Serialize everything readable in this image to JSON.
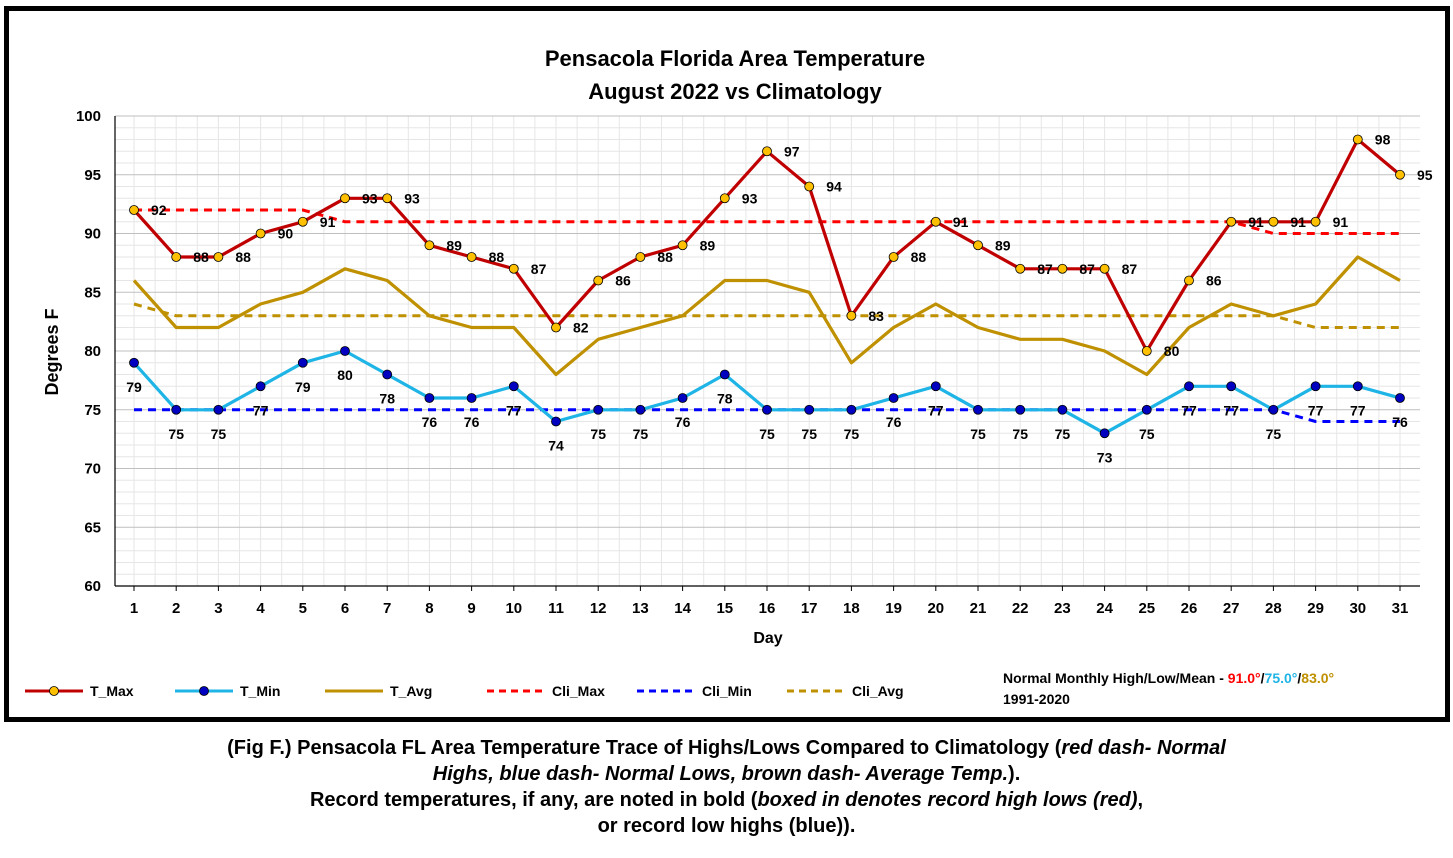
{
  "chart_data": {
    "type": "line",
    "title_line1": "Pensacola Florida  Area Temperature",
    "title_line2": "August 2022 vs Climatology",
    "xlabel": "Day",
    "ylabel": "Degrees F",
    "ylim": [
      60,
      100
    ],
    "yticks": [
      60,
      65,
      70,
      75,
      80,
      85,
      90,
      95,
      100
    ],
    "x": [
      1,
      2,
      3,
      4,
      5,
      6,
      7,
      8,
      9,
      10,
      11,
      12,
      13,
      14,
      15,
      16,
      17,
      18,
      19,
      20,
      21,
      22,
      23,
      24,
      25,
      26,
      27,
      28,
      29,
      30,
      31
    ],
    "grid": true,
    "series": [
      {
        "name": "T_Max",
        "color": "#c00000",
        "marker": "#ffc000",
        "style": "solid-marker",
        "values": [
          92,
          88,
          88,
          90,
          91,
          93,
          93,
          89,
          88,
          87,
          82,
          86,
          88,
          89,
          93,
          97,
          94,
          83,
          88,
          91,
          89,
          87,
          87,
          87,
          80,
          86,
          91,
          91,
          91,
          98,
          95
        ]
      },
      {
        "name": "T_Min",
        "color": "#1fb4e6",
        "marker": "#0000c0",
        "style": "solid-marker",
        "values": [
          79,
          75,
          75,
          77,
          79,
          80,
          78,
          76,
          76,
          77,
          74,
          75,
          75,
          76,
          78,
          75,
          75,
          75,
          76,
          77,
          75,
          75,
          75,
          73,
          75,
          77,
          77,
          75,
          77,
          77,
          76
        ]
      },
      {
        "name": "T_Avg",
        "color": "#bf9000",
        "style": "solid",
        "values": [
          86,
          82,
          82,
          84,
          85,
          87,
          86,
          83,
          82,
          82,
          78,
          81,
          82,
          83,
          86,
          86,
          85,
          79,
          82,
          84,
          82,
          81,
          81,
          80,
          78,
          82,
          84,
          83,
          84,
          88,
          86
        ]
      },
      {
        "name": "Cli_Max",
        "color": "#ff0000",
        "style": "dashed",
        "values": [
          92,
          92,
          92,
          92,
          92,
          91,
          91,
          91,
          91,
          91,
          91,
          91,
          91,
          91,
          91,
          91,
          91,
          91,
          91,
          91,
          91,
          91,
          91,
          91,
          91,
          91,
          91,
          90,
          90,
          90,
          90
        ]
      },
      {
        "name": "Cli_Min",
        "color": "#0000ff",
        "style": "dashed",
        "values": [
          75,
          75,
          75,
          75,
          75,
          75,
          75,
          75,
          75,
          75,
          75,
          75,
          75,
          75,
          75,
          75,
          75,
          75,
          75,
          75,
          75,
          75,
          75,
          75,
          75,
          75,
          75,
          75,
          74,
          74,
          74
        ]
      },
      {
        "name": "Cli_Avg",
        "color": "#bf9000",
        "style": "dashed",
        "values": [
          84,
          83,
          83,
          83,
          83,
          83,
          83,
          83,
          83,
          83,
          83,
          83,
          83,
          83,
          83,
          83,
          83,
          83,
          83,
          83,
          83,
          83,
          83,
          83,
          83,
          83,
          83,
          83,
          82,
          82,
          82
        ]
      }
    ],
    "normals_label": "Normal Monthly High/Low/Mean - ",
    "normal_high": "91.0°",
    "normal_low": "75.0°",
    "normal_mean": "83.0°",
    "slash": "/",
    "normals_period": "1991-2020"
  },
  "caption": {
    "line1_a": "(Fig F.) Pensacola FL Area Temperature Trace of Highs/Lows Compared to Climatology (",
    "line1_b": "red dash- Normal",
    "line2_a": "Highs, blue dash- Normal Lows, brown dash- Average Temp.",
    "line2_b": ").",
    "line3_a": "Record temperatures, if any, are noted in bold (",
    "line3_b": "boxed in denotes record high lows (red)",
    "line3_c": ",",
    "line4": "or record low highs (blue))."
  }
}
